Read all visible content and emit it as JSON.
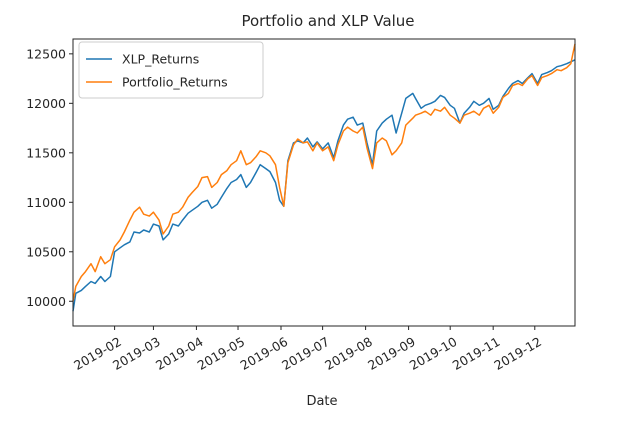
{
  "chart_data": {
    "type": "line",
    "title": "Portfolio and XLP Value",
    "xlabel": "Date",
    "ylabel": "",
    "xlim": [
      "2019-01-02",
      "2019-12-30"
    ],
    "ylim": [
      9750,
      12650
    ],
    "grid": false,
    "legend_position": "upper-left",
    "yticks": [
      10000,
      10500,
      11000,
      11500,
      12000,
      12500
    ],
    "xticks": [
      "2019-02",
      "2019-03",
      "2019-04",
      "2019-05",
      "2019-06",
      "2019-07",
      "2019-08",
      "2019-09",
      "2019-10",
      "2019-11",
      "2019-12"
    ],
    "series": [
      {
        "name": "XLP_Returns",
        "color": "#1f77b4",
        "points": [
          [
            "2019-01-02",
            9900
          ],
          [
            "2019-01-04",
            10080
          ],
          [
            "2019-01-08",
            10110
          ],
          [
            "2019-01-11",
            10150
          ],
          [
            "2019-01-15",
            10200
          ],
          [
            "2019-01-18",
            10180
          ],
          [
            "2019-01-22",
            10250
          ],
          [
            "2019-01-25",
            10200
          ],
          [
            "2019-01-29",
            10250
          ],
          [
            "2019-02-01",
            10500
          ],
          [
            "2019-02-05",
            10540
          ],
          [
            "2019-02-08",
            10570
          ],
          [
            "2019-02-12",
            10600
          ],
          [
            "2019-02-15",
            10700
          ],
          [
            "2019-02-19",
            10690
          ],
          [
            "2019-02-22",
            10720
          ],
          [
            "2019-02-26",
            10700
          ],
          [
            "2019-03-01",
            10780
          ],
          [
            "2019-03-05",
            10760
          ],
          [
            "2019-03-08",
            10620
          ],
          [
            "2019-03-12",
            10680
          ],
          [
            "2019-03-15",
            10780
          ],
          [
            "2019-03-19",
            10760
          ],
          [
            "2019-03-22",
            10820
          ],
          [
            "2019-03-26",
            10890
          ],
          [
            "2019-03-29",
            10920
          ],
          [
            "2019-04-02",
            10960
          ],
          [
            "2019-04-05",
            11000
          ],
          [
            "2019-04-09",
            11020
          ],
          [
            "2019-04-12",
            10940
          ],
          [
            "2019-04-16",
            10980
          ],
          [
            "2019-04-19",
            11050
          ],
          [
            "2019-04-23",
            11140
          ],
          [
            "2019-04-26",
            11200
          ],
          [
            "2019-04-30",
            11230
          ],
          [
            "2019-05-03",
            11280
          ],
          [
            "2019-05-07",
            11150
          ],
          [
            "2019-05-10",
            11200
          ],
          [
            "2019-05-14",
            11300
          ],
          [
            "2019-05-17",
            11380
          ],
          [
            "2019-05-21",
            11340
          ],
          [
            "2019-05-24",
            11310
          ],
          [
            "2019-05-28",
            11200
          ],
          [
            "2019-05-31",
            11020
          ],
          [
            "2019-06-03",
            10960
          ],
          [
            "2019-06-06",
            11420
          ],
          [
            "2019-06-10",
            11600
          ],
          [
            "2019-06-13",
            11620
          ],
          [
            "2019-06-17",
            11600
          ],
          [
            "2019-06-20",
            11650
          ],
          [
            "2019-06-24",
            11560
          ],
          [
            "2019-06-27",
            11610
          ],
          [
            "2019-07-01",
            11540
          ],
          [
            "2019-07-05",
            11600
          ],
          [
            "2019-07-09",
            11450
          ],
          [
            "2019-07-12",
            11620
          ],
          [
            "2019-07-16",
            11780
          ],
          [
            "2019-07-19",
            11840
          ],
          [
            "2019-07-23",
            11860
          ],
          [
            "2019-07-26",
            11780
          ],
          [
            "2019-07-30",
            11800
          ],
          [
            "2019-08-02",
            11600
          ],
          [
            "2019-08-06",
            11380
          ],
          [
            "2019-08-09",
            11720
          ],
          [
            "2019-08-13",
            11800
          ],
          [
            "2019-08-16",
            11840
          ],
          [
            "2019-08-20",
            11880
          ],
          [
            "2019-08-23",
            11700
          ],
          [
            "2019-08-27",
            11900
          ],
          [
            "2019-08-30",
            12050
          ],
          [
            "2019-09-04",
            12100
          ],
          [
            "2019-09-06",
            12050
          ],
          [
            "2019-09-10",
            11950
          ],
          [
            "2019-09-13",
            11980
          ],
          [
            "2019-09-17",
            12000
          ],
          [
            "2019-09-20",
            12020
          ],
          [
            "2019-09-24",
            12080
          ],
          [
            "2019-09-27",
            12060
          ],
          [
            "2019-10-01",
            11980
          ],
          [
            "2019-10-04",
            11950
          ],
          [
            "2019-10-08",
            11800
          ],
          [
            "2019-10-11",
            11900
          ],
          [
            "2019-10-15",
            11960
          ],
          [
            "2019-10-18",
            12020
          ],
          [
            "2019-10-22",
            11980
          ],
          [
            "2019-10-25",
            12000
          ],
          [
            "2019-10-29",
            12050
          ],
          [
            "2019-11-01",
            11940
          ],
          [
            "2019-11-05",
            11980
          ],
          [
            "2019-11-08",
            12070
          ],
          [
            "2019-11-12",
            12150
          ],
          [
            "2019-11-15",
            12200
          ],
          [
            "2019-11-19",
            12230
          ],
          [
            "2019-11-22",
            12200
          ],
          [
            "2019-11-26",
            12260
          ],
          [
            "2019-11-29",
            12300
          ],
          [
            "2019-12-03",
            12200
          ],
          [
            "2019-12-06",
            12290
          ],
          [
            "2019-12-10",
            12310
          ],
          [
            "2019-12-13",
            12330
          ],
          [
            "2019-12-17",
            12370
          ],
          [
            "2019-12-20",
            12380
          ],
          [
            "2019-12-24",
            12400
          ],
          [
            "2019-12-27",
            12420
          ],
          [
            "2019-12-30",
            12440
          ]
        ]
      },
      {
        "name": "Portfolio_Returns",
        "color": "#ff7f0e",
        "points": [
          [
            "2019-01-02",
            10000
          ],
          [
            "2019-01-04",
            10150
          ],
          [
            "2019-01-08",
            10250
          ],
          [
            "2019-01-11",
            10300
          ],
          [
            "2019-01-15",
            10380
          ],
          [
            "2019-01-18",
            10300
          ],
          [
            "2019-01-22",
            10450
          ],
          [
            "2019-01-25",
            10380
          ],
          [
            "2019-01-29",
            10420
          ],
          [
            "2019-02-01",
            10550
          ],
          [
            "2019-02-05",
            10620
          ],
          [
            "2019-02-08",
            10700
          ],
          [
            "2019-02-12",
            10820
          ],
          [
            "2019-02-15",
            10900
          ],
          [
            "2019-02-19",
            10950
          ],
          [
            "2019-02-22",
            10880
          ],
          [
            "2019-02-26",
            10860
          ],
          [
            "2019-03-01",
            10900
          ],
          [
            "2019-03-05",
            10820
          ],
          [
            "2019-03-08",
            10680
          ],
          [
            "2019-03-12",
            10760
          ],
          [
            "2019-03-15",
            10880
          ],
          [
            "2019-03-19",
            10900
          ],
          [
            "2019-03-22",
            10950
          ],
          [
            "2019-03-26",
            11050
          ],
          [
            "2019-03-29",
            11100
          ],
          [
            "2019-04-02",
            11160
          ],
          [
            "2019-04-05",
            11250
          ],
          [
            "2019-04-09",
            11260
          ],
          [
            "2019-04-12",
            11150
          ],
          [
            "2019-04-16",
            11200
          ],
          [
            "2019-04-19",
            11280
          ],
          [
            "2019-04-23",
            11320
          ],
          [
            "2019-04-26",
            11380
          ],
          [
            "2019-04-30",
            11420
          ],
          [
            "2019-05-03",
            11520
          ],
          [
            "2019-05-07",
            11380
          ],
          [
            "2019-05-10",
            11400
          ],
          [
            "2019-05-14",
            11460
          ],
          [
            "2019-05-17",
            11520
          ],
          [
            "2019-05-21",
            11500
          ],
          [
            "2019-05-24",
            11470
          ],
          [
            "2019-05-28",
            11380
          ],
          [
            "2019-05-31",
            11150
          ],
          [
            "2019-06-03",
            10960
          ],
          [
            "2019-06-06",
            11400
          ],
          [
            "2019-06-10",
            11580
          ],
          [
            "2019-06-13",
            11640
          ],
          [
            "2019-06-17",
            11600
          ],
          [
            "2019-06-20",
            11610
          ],
          [
            "2019-06-24",
            11520
          ],
          [
            "2019-06-27",
            11600
          ],
          [
            "2019-07-01",
            11520
          ],
          [
            "2019-07-05",
            11560
          ],
          [
            "2019-07-09",
            11420
          ],
          [
            "2019-07-12",
            11580
          ],
          [
            "2019-07-16",
            11720
          ],
          [
            "2019-07-19",
            11760
          ],
          [
            "2019-07-23",
            11720
          ],
          [
            "2019-07-26",
            11700
          ],
          [
            "2019-07-30",
            11760
          ],
          [
            "2019-08-02",
            11550
          ],
          [
            "2019-08-06",
            11340
          ],
          [
            "2019-08-09",
            11600
          ],
          [
            "2019-08-13",
            11650
          ],
          [
            "2019-08-16",
            11620
          ],
          [
            "2019-08-20",
            11480
          ],
          [
            "2019-08-23",
            11520
          ],
          [
            "2019-08-27",
            11600
          ],
          [
            "2019-08-30",
            11780
          ],
          [
            "2019-09-04",
            11850
          ],
          [
            "2019-09-06",
            11880
          ],
          [
            "2019-09-10",
            11900
          ],
          [
            "2019-09-13",
            11920
          ],
          [
            "2019-09-17",
            11880
          ],
          [
            "2019-09-20",
            11940
          ],
          [
            "2019-09-24",
            11920
          ],
          [
            "2019-09-27",
            11960
          ],
          [
            "2019-10-01",
            11880
          ],
          [
            "2019-10-04",
            11850
          ],
          [
            "2019-10-08",
            11800
          ],
          [
            "2019-10-11",
            11880
          ],
          [
            "2019-10-15",
            11900
          ],
          [
            "2019-10-18",
            11920
          ],
          [
            "2019-10-22",
            11880
          ],
          [
            "2019-10-25",
            11950
          ],
          [
            "2019-10-29",
            11980
          ],
          [
            "2019-11-01",
            11900
          ],
          [
            "2019-11-05",
            11960
          ],
          [
            "2019-11-08",
            12060
          ],
          [
            "2019-11-12",
            12100
          ],
          [
            "2019-11-15",
            12180
          ],
          [
            "2019-11-19",
            12200
          ],
          [
            "2019-11-22",
            12180
          ],
          [
            "2019-11-26",
            12250
          ],
          [
            "2019-11-29",
            12280
          ],
          [
            "2019-12-03",
            12180
          ],
          [
            "2019-12-06",
            12260
          ],
          [
            "2019-12-10",
            12280
          ],
          [
            "2019-12-13",
            12300
          ],
          [
            "2019-12-17",
            12340
          ],
          [
            "2019-12-20",
            12330
          ],
          [
            "2019-12-24",
            12360
          ],
          [
            "2019-12-27",
            12400
          ],
          [
            "2019-12-30",
            12600
          ]
        ]
      }
    ]
  }
}
